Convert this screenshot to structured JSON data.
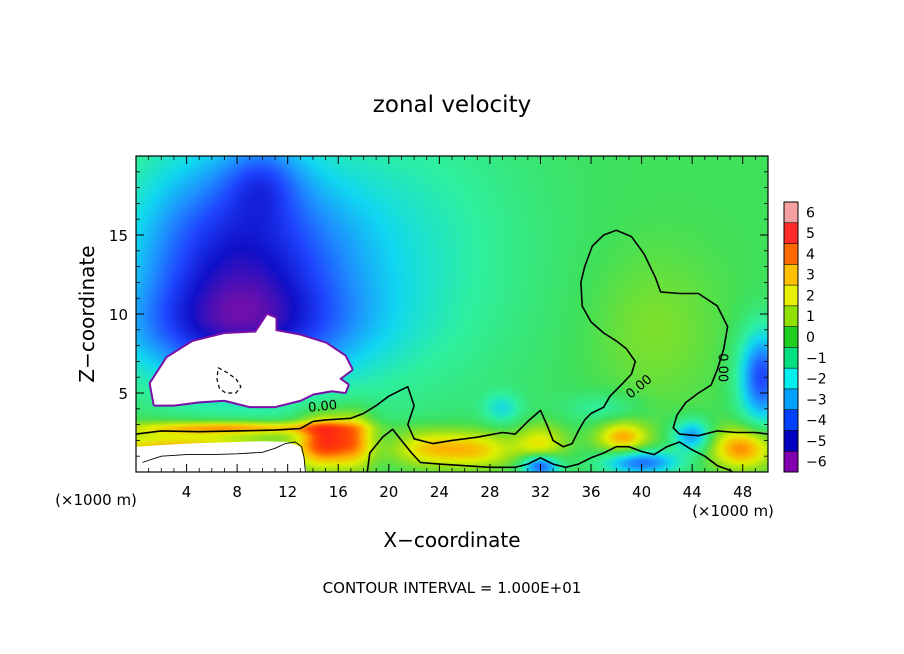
{
  "chart_data": {
    "type": "heatmap",
    "title": "zonal velocity",
    "xlabel": "X−coordinate",
    "ylabel": "Z−coordinate",
    "x_unit_left": "(×1000 m)",
    "x_unit_right": "(×1000 m)",
    "xlim": [
      0,
      50
    ],
    "ylim": [
      0,
      20
    ],
    "xticks": [
      4,
      8,
      12,
      16,
      20,
      24,
      28,
      32,
      36,
      40,
      44,
      48
    ],
    "xtick_labels": [
      "4",
      "8",
      "12",
      "16",
      "20",
      "24",
      "28",
      "32",
      "36",
      "40",
      "44",
      "48"
    ],
    "yticks": [
      5,
      10,
      15
    ],
    "ytick_labels": [
      "5",
      "10",
      "15"
    ],
    "footer": "CONTOUR INTERVAL = 1.000E+01",
    "contour_label": "0.00",
    "colorbar": {
      "levels": [
        6,
        5,
        4,
        3,
        2,
        1,
        0,
        -1,
        -2,
        -3,
        -4,
        -5,
        -6
      ],
      "level_labels": [
        "6",
        "5",
        "4",
        "3",
        "2",
        "1",
        "0",
        "−1",
        "−2",
        "−3",
        "−4",
        "−5",
        "−6"
      ],
      "colors": [
        "#f5a0a0",
        "#ff2a2a",
        "#ff6a00",
        "#ffc000",
        "#e8f000",
        "#90e000",
        "#20d020",
        "#00e080",
        "#00f0f0",
        "#00a0ff",
        "#0040ff",
        "#0000c0",
        "#8000b0"
      ]
    },
    "colormap_stops": [
      {
        "value": -6,
        "color": "#7a0fa8"
      },
      {
        "value": -5,
        "color": "#1010c8"
      },
      {
        "value": -4,
        "color": "#1f45ff"
      },
      {
        "value": -3,
        "color": "#1e90ff"
      },
      {
        "value": -2,
        "color": "#10d8f0"
      },
      {
        "value": -1,
        "color": "#2ef0a0"
      },
      {
        "value": 0,
        "color": "#3fe05a"
      },
      {
        "value": 1,
        "color": "#8ee020"
      },
      {
        "value": 2,
        "color": "#e0f000"
      },
      {
        "value": 3,
        "color": "#ffb000"
      },
      {
        "value": 4,
        "color": "#ff5000"
      },
      {
        "value": 5,
        "color": "#ff1a1a"
      },
      {
        "value": 6,
        "color": "#f8a8a8"
      }
    ],
    "field_features": [
      {
        "kind": "background",
        "value": 0.0
      },
      {
        "kind": "bump",
        "x": 9,
        "z": 13,
        "sx": 9,
        "sz": 7,
        "amp": -4.0
      },
      {
        "kind": "bump",
        "x": 10,
        "z": 18.5,
        "sx": 3,
        "sz": 2.5,
        "amp": -1.5
      },
      {
        "kind": "bump",
        "x": 8,
        "z": 9,
        "sx": 10,
        "sz": 3,
        "amp": -2.0
      },
      {
        "kind": "bump",
        "x": 5,
        "z": 14,
        "sx": 7,
        "sz": 9,
        "amp": -1.0
      },
      {
        "kind": "bump",
        "x": 22,
        "z": 14,
        "sx": 10,
        "sz": 10,
        "amp": -1.2
      },
      {
        "kind": "bump",
        "x": 41,
        "z": 9,
        "sx": 5,
        "sz": 5,
        "amp": 0.8
      },
      {
        "kind": "bump",
        "x": 49.5,
        "z": 6,
        "sx": 1.8,
        "sz": 3,
        "amp": -4.0
      },
      {
        "kind": "bump",
        "x": 8,
        "z": 2.8,
        "sx": 8,
        "sz": 0.4,
        "amp": 3.0
      },
      {
        "kind": "bump",
        "x": 4,
        "z": 1.2,
        "sx": 8,
        "sz": 1.5,
        "amp": 3.5
      },
      {
        "kind": "bump",
        "x": 15,
        "z": 2,
        "sx": 2.2,
        "sz": 1.6,
        "amp": 4.5
      },
      {
        "kind": "bump",
        "x": 17.5,
        "z": 2,
        "sx": 1.5,
        "sz": 1.8,
        "amp": 2.5
      },
      {
        "kind": "bump",
        "x": 23,
        "z": 1.5,
        "sx": 3,
        "sz": 1.2,
        "amp": 2.5
      },
      {
        "kind": "bump",
        "x": 27,
        "z": 1.4,
        "sx": 3,
        "sz": 1.2,
        "amp": 2.5
      },
      {
        "kind": "bump",
        "x": 32,
        "z": 1.8,
        "sx": 2,
        "sz": 1.2,
        "amp": 2.2
      },
      {
        "kind": "bump",
        "x": 32,
        "z": 0.4,
        "sx": 1.5,
        "sz": 0.7,
        "amp": -4.0
      },
      {
        "kind": "bump",
        "x": 38.5,
        "z": 2.2,
        "sx": 2,
        "sz": 1.0,
        "amp": 3.0
      },
      {
        "kind": "bump",
        "x": 40,
        "z": 0.6,
        "sx": 3,
        "sz": 0.8,
        "amp": -3.5
      },
      {
        "kind": "bump",
        "x": 44,
        "z": 2.3,
        "sx": 1.5,
        "sz": 1.0,
        "amp": -3.0
      },
      {
        "kind": "bump",
        "x": 48,
        "z": 1.5,
        "sx": 2.5,
        "sz": 1.3,
        "amp": 3.5
      },
      {
        "kind": "bump",
        "x": 29,
        "z": 4,
        "sx": 1.5,
        "sz": 1.0,
        "amp": -1.5
      },
      {
        "kind": "bump",
        "x": 37,
        "z": 4,
        "sx": 3,
        "sz": 1.0,
        "amp": -1.0
      }
    ],
    "missing_region": {
      "points": [
        [
          1.2,
          5.6
        ],
        [
          2.5,
          7.2
        ],
        [
          4.5,
          8.2
        ],
        [
          7,
          8.7
        ],
        [
          9.5,
          8.8
        ],
        [
          10,
          9.4
        ],
        [
          10.4,
          9.9
        ],
        [
          11,
          9.7
        ],
        [
          11,
          8.9
        ],
        [
          13,
          8.6
        ],
        [
          15,
          8.1
        ],
        [
          16.5,
          7.3
        ],
        [
          17,
          6.5
        ],
        [
          16,
          5.9
        ],
        [
          16.7,
          5.5
        ],
        [
          16.5,
          5.1
        ],
        [
          15.5,
          5.2
        ],
        [
          14,
          5.0
        ],
        [
          13,
          4.6
        ],
        [
          11,
          4.2
        ],
        [
          9,
          4.2
        ],
        [
          7,
          4.6
        ],
        [
          5,
          4.5
        ],
        [
          3,
          4.3
        ],
        [
          1.5,
          4.3
        ]
      ],
      "hole_rings": [
        [
          [
            1.6,
            5.2
          ],
          [
            1.8,
            7.0
          ],
          [
            2.6,
            7.8
          ]
        ],
        [
          [
            2.4,
            4.6
          ],
          [
            1.7,
            4.9
          ],
          [
            1.2,
            5.4
          ]
        ]
      ]
    },
    "terrain_white": {
      "points": [
        [
          0,
          0
        ],
        [
          0,
          1.6
        ],
        [
          2,
          1.7
        ],
        [
          4,
          1.8
        ],
        [
          6,
          1.85
        ],
        [
          8,
          1.9
        ],
        [
          10,
          1.95
        ],
        [
          12,
          1.9
        ],
        [
          13,
          1.6
        ],
        [
          13.3,
          0.8
        ],
        [
          13.5,
          0
        ]
      ]
    },
    "contours": [
      {
        "label": "0.00",
        "label_at": [
          14.8,
          3.9
        ],
        "points": [
          [
            0,
            2.4
          ],
          [
            2,
            2.6
          ],
          [
            5,
            2.55
          ],
          [
            8,
            2.6
          ],
          [
            11,
            2.65
          ],
          [
            13,
            2.75
          ],
          [
            14,
            3.2
          ],
          [
            15,
            3.3
          ],
          [
            17,
            3.4
          ],
          [
            18,
            3.7
          ],
          [
            19,
            4.2
          ],
          [
            20,
            4.8
          ],
          [
            21,
            5.2
          ],
          [
            21.5,
            5.4
          ],
          [
            22,
            4.2
          ],
          [
            21.5,
            3.0
          ],
          [
            22,
            2.1
          ],
          [
            23.5,
            1.8
          ],
          [
            25,
            2.0
          ],
          [
            27,
            2.2
          ],
          [
            29,
            2.5
          ],
          [
            30,
            2.4
          ],
          [
            31,
            3.2
          ],
          [
            32,
            3.9
          ],
          [
            32.5,
            3.0
          ],
          [
            33,
            2.0
          ],
          [
            33.8,
            1.6
          ],
          [
            34.5,
            1.8
          ],
          [
            35,
            2.6
          ],
          [
            35.5,
            3.3
          ],
          [
            36,
            3.7
          ],
          [
            37,
            4.1
          ],
          [
            37.5,
            4.8
          ],
          [
            38.5,
            5.6
          ],
          [
            39.2,
            6.2
          ],
          [
            39.5,
            7.0
          ],
          [
            38.8,
            7.8
          ],
          [
            38,
            8.3
          ],
          [
            37,
            8.8
          ],
          [
            36,
            9.5
          ],
          [
            35.3,
            10.5
          ],
          [
            35.2,
            12.0
          ],
          [
            35.5,
            13.0
          ],
          [
            36.1,
            14.3
          ],
          [
            37.0,
            15.0
          ],
          [
            38.0,
            15.3
          ],
          [
            39.2,
            14.9
          ],
          [
            40.2,
            13.8
          ],
          [
            41.1,
            12.3
          ],
          [
            41.5,
            11.4
          ],
          [
            43.0,
            11.3
          ],
          [
            44.5,
            11.3
          ],
          [
            46.0,
            10.5
          ],
          [
            46.8,
            9.2
          ],
          [
            46.5,
            7.8
          ],
          [
            46.0,
            6.5
          ],
          [
            45.5,
            5.5
          ],
          [
            44.5,
            5.0
          ],
          [
            43.5,
            4.4
          ],
          [
            42.8,
            3.6
          ],
          [
            42.5,
            2.8
          ],
          [
            43.0,
            2.4
          ],
          [
            44.5,
            2.3
          ],
          [
            46.0,
            2.6
          ],
          [
            47.5,
            2.5
          ],
          [
            49.0,
            2.5
          ],
          [
            50,
            2.4
          ]
        ]
      },
      {
        "label": "",
        "points": [
          [
            18.3,
            0
          ],
          [
            18.5,
            1.2
          ],
          [
            19.5,
            2.2
          ],
          [
            20.3,
            2.7
          ],
          [
            21.0,
            2.0
          ],
          [
            21.8,
            1.2
          ],
          [
            22.5,
            0.6
          ],
          [
            24,
            0.5
          ],
          [
            26,
            0.4
          ],
          [
            28,
            0.3
          ],
          [
            30,
            0.3
          ],
          [
            31,
            0.5
          ],
          [
            32,
            0.9
          ],
          [
            33,
            0.5
          ],
          [
            34,
            0.3
          ],
          [
            35,
            0.5
          ],
          [
            36,
            0.9
          ],
          [
            37,
            1.2
          ],
          [
            38,
            1.6
          ],
          [
            39,
            1.6
          ],
          [
            40,
            1.3
          ],
          [
            41,
            1.1
          ],
          [
            42,
            1.6
          ],
          [
            43,
            1.9
          ],
          [
            44,
            1.4
          ],
          [
            45,
            1.0
          ],
          [
            46,
            0.4
          ],
          [
            47,
            0.1
          ],
          [
            47.2,
            0
          ]
        ]
      },
      {
        "label": "",
        "points": [
          [
            0.5,
            0.6
          ],
          [
            2,
            1.0
          ],
          [
            4,
            1.1
          ],
          [
            6,
            1.1
          ],
          [
            8,
            1.15
          ],
          [
            10,
            1.25
          ],
          [
            11,
            1.5
          ],
          [
            11.8,
            1.8
          ],
          [
            12.6,
            1.9
          ],
          [
            13.1,
            1.6
          ],
          [
            13.3,
            0.9
          ],
          [
            13.4,
            0
          ]
        ],
        "thin": true
      },
      {
        "label": "",
        "dashed": true,
        "points": [
          [
            6.5,
            6.6
          ],
          [
            7.2,
            6.3
          ],
          [
            7.9,
            5.9
          ],
          [
            8.3,
            5.4
          ],
          [
            7.9,
            5.0
          ],
          [
            7.1,
            5.0
          ],
          [
            6.6,
            5.3
          ],
          [
            6.4,
            5.9
          ],
          [
            6.5,
            6.6
          ]
        ]
      }
    ],
    "inline_labels": [
      {
        "text": "0.00",
        "x": 14.8,
        "z": 3.9,
        "rotate": -6
      },
      {
        "text": "0.00",
        "x": 40.0,
        "z": 5.2,
        "rotate": -40
      },
      {
        "text": "0.00",
        "x": 46.1,
        "z": 6.6,
        "rotate": 90
      }
    ]
  }
}
